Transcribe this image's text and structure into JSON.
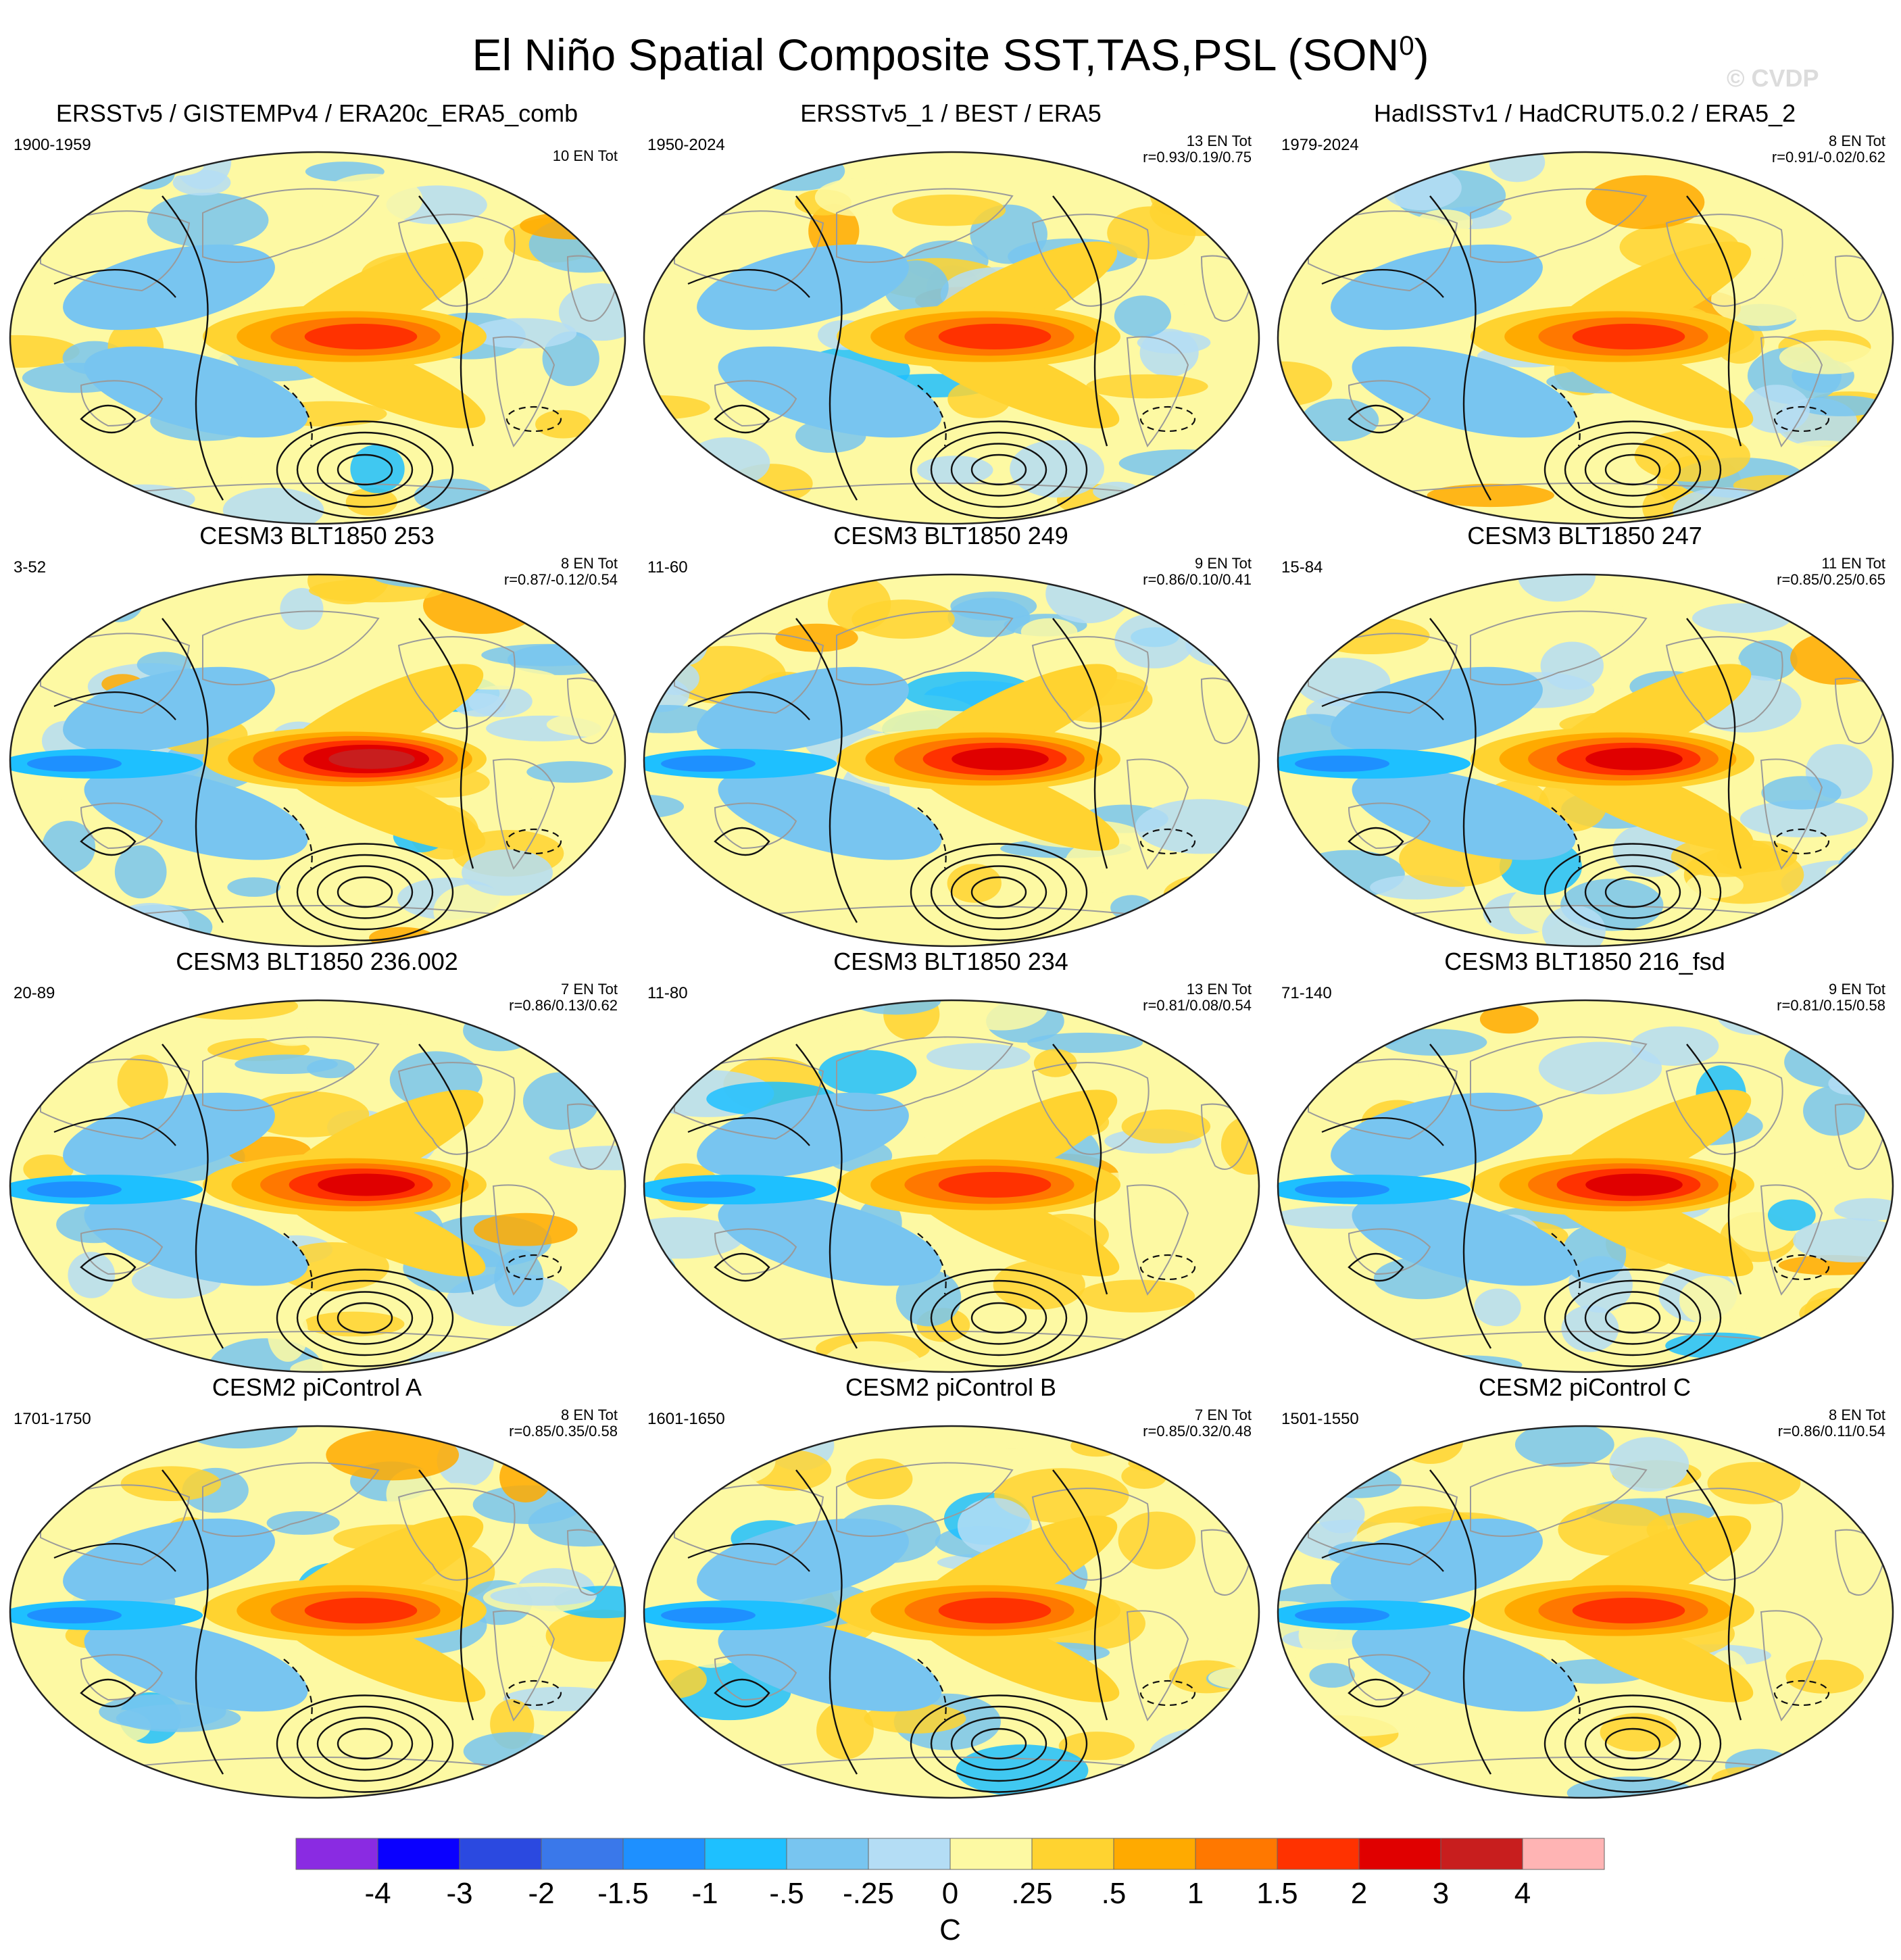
{
  "title_main": "El Niño Spatial Composite SST,TAS,PSL (SON",
  "title_sup": "0",
  "title_end": ")",
  "watermark": "© CVDP",
  "colors": {
    "ocean_base": "#fdf9a3",
    "land_outline": "#9a9a9a",
    "contour": "#111111",
    "missing": "#ffffff"
  },
  "panels": [
    {
      "title": "ERSSTv5 / GISTEMPv4 / ERA20c_ERA5_comb",
      "period": "1900-1959",
      "count": "10 EN Tot",
      "corr": ""
    },
    {
      "title": "ERSSTv5_1 / BEST / ERA5",
      "period": "1950-2024",
      "count": "13 EN Tot",
      "corr": "r=0.93/0.19/0.75"
    },
    {
      "title": "HadISSTv1 / HadCRUT5.0.2 / ERA5_2",
      "period": "1979-2024",
      "count": "8 EN Tot",
      "corr": "r=0.91/-0.02/0.62"
    },
    {
      "title": "CESM3 BLT1850 253",
      "period": "3-52",
      "count": "8 EN Tot",
      "corr": "r=0.87/-0.12/0.54"
    },
    {
      "title": "CESM3 BLT1850 249",
      "period": "11-60",
      "count": "9 EN Tot",
      "corr": "r=0.86/0.10/0.41"
    },
    {
      "title": "CESM3 BLT1850 247",
      "period": "15-84",
      "count": "11 EN Tot",
      "corr": "r=0.85/0.25/0.65"
    },
    {
      "title": "CESM3 BLT1850 236.002",
      "period": "20-89",
      "count": "7 EN Tot",
      "corr": "r=0.86/0.13/0.62"
    },
    {
      "title": "CESM3 BLT1850 234",
      "period": "11-80",
      "count": "13 EN Tot",
      "corr": "r=0.81/0.08/0.54"
    },
    {
      "title": "CESM3 BLT1850 216_fsd",
      "period": "71-140",
      "count": "9 EN Tot",
      "corr": "r=0.81/0.15/0.58"
    },
    {
      "title": "CESM2 piControl A",
      "period": "1701-1750",
      "count": "8 EN Tot",
      "corr": "r=0.85/0.35/0.58"
    },
    {
      "title": "CESM2 piControl B",
      "period": "1601-1650",
      "count": "7 EN Tot",
      "corr": "r=0.85/0.32/0.48"
    },
    {
      "title": "CESM2 piControl C",
      "period": "1501-1550",
      "count": "8 EN Tot",
      "corr": "r=0.86/0.11/0.54"
    }
  ],
  "chart_data": {
    "type": "heatmap",
    "title": "El Niño Spatial Composite SST,TAS,PSL (SON0)",
    "projection": "Robinson-like global map",
    "fields": [
      "SST",
      "TAS",
      "PSL (contours)"
    ],
    "units": "C",
    "colorbar": {
      "label": "C",
      "tick_labels": [
        "-4",
        "-3",
        "-2",
        "-1.5",
        "-1",
        "-.5",
        "-.25",
        "0",
        ".25",
        ".5",
        "1",
        "1.5",
        "2",
        "3",
        "4"
      ],
      "levels": [
        -4,
        -3,
        -2,
        -1.5,
        -1,
        -0.5,
        -0.25,
        0,
        0.25,
        0.5,
        1,
        1.5,
        2,
        3,
        4
      ],
      "colors": [
        "#8a2be2",
        "#0a00ff",
        "#2b49e0",
        "#3a78ea",
        "#1e90ff",
        "#1ec0ff",
        "#78c5f0",
        "#b4ddf5",
        "#fdf9a3",
        "#ffd330",
        "#ffaa00",
        "#ff7800",
        "#ff3200",
        "#e00000",
        "#c81e1e",
        "#ffb4b4"
      ]
    },
    "panels": [
      {
        "name": "ERSSTv5 / GISTEMPv4 / ERA20c_ERA5_comb",
        "years": "1900-1959",
        "n_events": 10,
        "corr": null,
        "eq_pacific_peak": 1.8
      },
      {
        "name": "ERSSTv5_1 / BEST / ERA5",
        "years": "1950-2024",
        "n_events": 13,
        "corr": [
          0.93,
          0.19,
          0.75
        ],
        "eq_pacific_peak": 2.0
      },
      {
        "name": "HadISSTv1 / HadCRUT5.0.2 / ERA5_2",
        "years": "1979-2024",
        "n_events": 8,
        "corr": [
          0.91,
          -0.02,
          0.62
        ],
        "eq_pacific_peak": 2.0
      },
      {
        "name": "CESM3 BLT1850 253",
        "years": "3-52",
        "n_events": 8,
        "corr": [
          0.87,
          -0.12,
          0.54
        ],
        "eq_pacific_peak": 3.5
      },
      {
        "name": "CESM3 BLT1850 249",
        "years": "11-60",
        "n_events": 9,
        "corr": [
          0.86,
          0.1,
          0.41
        ],
        "eq_pacific_peak": 2.5
      },
      {
        "name": "CESM3 BLT1850 247",
        "years": "15-84",
        "n_events": 11,
        "corr": [
          0.85,
          0.25,
          0.65
        ],
        "eq_pacific_peak": 2.5
      },
      {
        "name": "CESM3 BLT1850 236.002",
        "years": "20-89",
        "n_events": 7,
        "corr": [
          0.86,
          0.13,
          0.62
        ],
        "eq_pacific_peak": 2.5
      },
      {
        "name": "CESM3 BLT1850 234",
        "years": "11-80",
        "n_events": 13,
        "corr": [
          0.81,
          0.08,
          0.54
        ],
        "eq_pacific_peak": 2.2
      },
      {
        "name": "CESM3 BLT1850 216_fsd",
        "years": "71-140",
        "n_events": 9,
        "corr": [
          0.81,
          0.15,
          0.58
        ],
        "eq_pacific_peak": 2.5
      },
      {
        "name": "CESM2 piControl A",
        "years": "1701-1750",
        "n_events": 8,
        "corr": [
          0.85,
          0.35,
          0.58
        ],
        "eq_pacific_peak": 2.2
      },
      {
        "name": "CESM2 piControl B",
        "years": "1601-1650",
        "n_events": 7,
        "corr": [
          0.85,
          0.32,
          0.48
        ],
        "eq_pacific_peak": 2.2
      },
      {
        "name": "CESM2 piControl C",
        "years": "1501-1550",
        "n_events": 8,
        "corr": [
          0.86,
          0.11,
          0.54
        ],
        "eq_pacific_peak": 2.2
      }
    ]
  }
}
